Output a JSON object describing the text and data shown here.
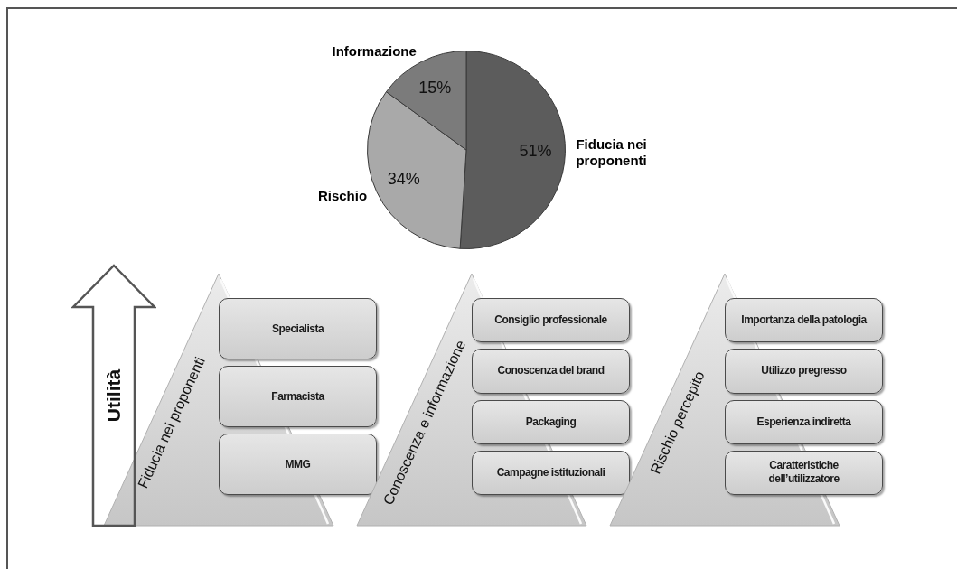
{
  "chart_data": [
    {
      "type": "pie",
      "categories": [
        "Fiducia nei proponenti",
        "Rischio",
        "Informazione"
      ],
      "values": [
        51,
        34,
        15
      ],
      "colors": [
        "#5c5c5c",
        "#a9a9a9",
        "#7b7b7b"
      ],
      "value_labels": [
        "51%",
        "34%",
        "15%"
      ]
    },
    {
      "type": "other",
      "title": "Fiducia nei proponenti",
      "ylabel": "Utilità",
      "annotations": [
        "Specialista",
        "Farmacista",
        "MMG"
      ]
    },
    {
      "type": "other",
      "title": "Conoscenza e informazione",
      "annotations": [
        "Consiglio professionale",
        "Conoscenza del brand",
        "Packaging",
        "Campagne istituzionali"
      ]
    },
    {
      "type": "other",
      "title": "Rischio percepito",
      "annotations": [
        "Importanza della patologia",
        "Utilizzo pregresso",
        "Esperienza indiretta",
        "Caratteristiche dell’utilizzatore"
      ]
    }
  ]
}
